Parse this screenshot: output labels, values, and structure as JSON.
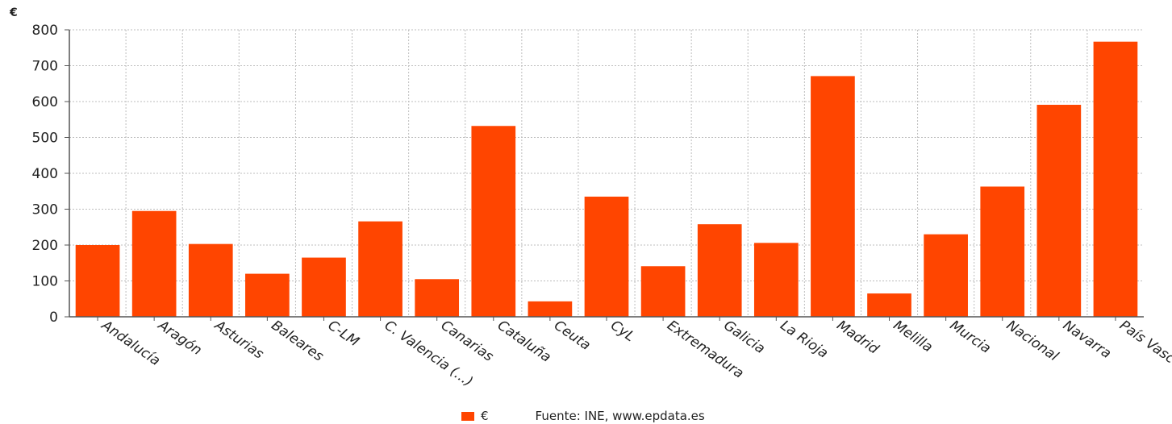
{
  "chart_data": {
    "type": "bar",
    "ylabel": "€",
    "ylim": [
      0,
      800
    ],
    "yticks": [
      0,
      100,
      200,
      300,
      400,
      500,
      600,
      700,
      800
    ],
    "grid": true,
    "legend_position": "bottom",
    "categories": [
      "Andalucía",
      "Aragón",
      "Asturias",
      "Baleares",
      "C-LM",
      "C. Valencia (...)",
      "Canarias",
      "Cataluña",
      "Ceuta",
      "CyL",
      "Extremadura",
      "Galicia",
      "La Rioja",
      "Madrid",
      "Melilla",
      "Murcia",
      "Nacional",
      "Navarra",
      "País Vasco"
    ],
    "series": [
      {
        "name": "€",
        "color": "#ff4500",
        "values": [
          200,
          295,
          203,
          120,
          165,
          266,
          105,
          532,
          43,
          335,
          141,
          258,
          206,
          671,
          65,
          230,
          363,
          591,
          767
        ]
      }
    ],
    "source": "Fuente: INE, www.epdata.es"
  }
}
